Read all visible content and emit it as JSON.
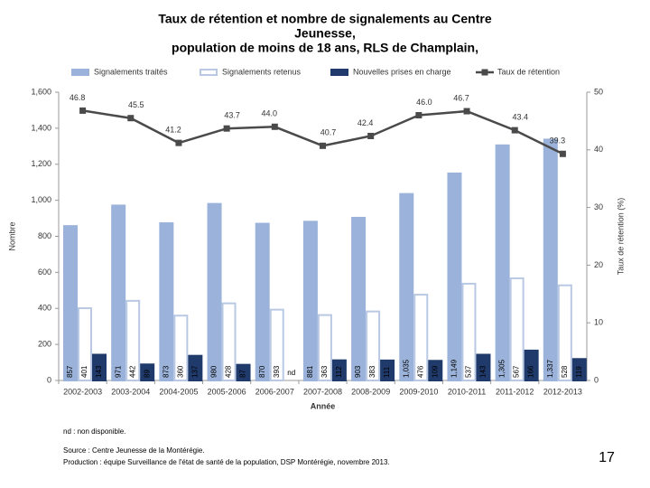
{
  "chart_data": {
    "type": "bar_line",
    "title_lines": [
      "Taux de rétention et nombre de signalements au Centre",
      "Jeunesse,",
      "population de moins de 18 ans, RLS de Champlain,"
    ],
    "xlabel": "Année",
    "ylabel": "Nombre",
    "y2label": "Taux de rétention (%)",
    "categories": [
      "2002-2003",
      "2003-2004",
      "2004-2005",
      "2005-2006",
      "2006-2007",
      "2007-2008",
      "2008-2009",
      "2009-2010",
      "2010-2011",
      "2011-2012",
      "2012-2013"
    ],
    "series": [
      {
        "name": "Signalements traités",
        "kind": "bar",
        "color": "#9bb3da",
        "stroke": "#9bb3da",
        "values": [
          857,
          971,
          873,
          980,
          870,
          881,
          903,
          1035,
          1149,
          1305,
          1337
        ],
        "value_labels": [
          "857",
          "971",
          "873",
          "980",
          "870",
          "881",
          "903",
          "1,035",
          "1,149",
          "1,305",
          "1,337"
        ]
      },
      {
        "name": "Signalements retenus",
        "kind": "bar",
        "color": "#ffffff",
        "stroke": "#b9c9e4",
        "values": [
          401,
          442,
          360,
          428,
          393,
          363,
          383,
          476,
          537,
          567,
          528
        ]
      },
      {
        "name": "Nouvelles prises en charge",
        "kind": "bar",
        "color": "#1f3a6b",
        "stroke": "#1f3a6b",
        "values": [
          143,
          89,
          137,
          87,
          null,
          112,
          111,
          109,
          143,
          166,
          119
        ],
        "value_labels": [
          "143",
          "89",
          "137",
          "87",
          "nd",
          "112",
          "111",
          "109",
          "143",
          "166",
          "119"
        ]
      },
      {
        "name": "Taux de rétention",
        "kind": "line",
        "axis": "y2",
        "color": "#4a4a4a",
        "values": [
          46.8,
          45.5,
          41.2,
          43.7,
          44.0,
          40.7,
          42.4,
          46.0,
          46.7,
          43.4,
          39.3
        ],
        "value_labels": [
          "46.8",
          "45.5",
          "41.2",
          "43.7",
          "44.0",
          "40.7",
          "42.4",
          "46.0",
          "46.7",
          "43.4",
          "39.3"
        ]
      }
    ],
    "ylim": [
      0,
      1600
    ],
    "yticks": [
      0,
      200,
      400,
      600,
      800,
      {
        "value": 1000,
        "label": "1,000"
      },
      {
        "value": 1200,
        "label": "1,200"
      },
      {
        "value": 1400,
        "label": "1,400"
      },
      {
        "value": 1600,
        "label": "1,600"
      }
    ],
    "y2lim": [
      0,
      50
    ],
    "y2ticks": [
      0,
      10,
      20,
      30,
      40,
      50
    ],
    "notes": [
      "nd : non disponible.",
      "Source : Centre Jeunesse de la Montérégie.",
      "Production : équipe Surveillance de l'état de santé de la population, DSP Montérégie, novembre 2013."
    ],
    "page_number": "17"
  }
}
